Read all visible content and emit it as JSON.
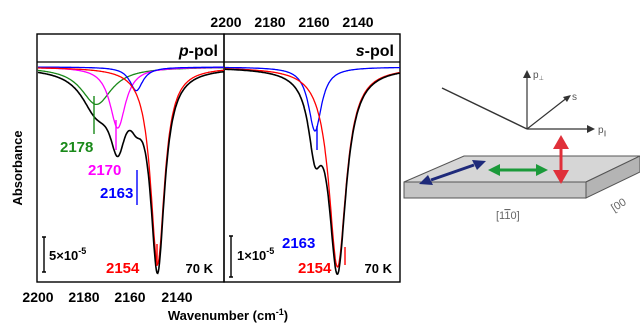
{
  "figure": {
    "y_axis_label": "Absorbance",
    "x_axis_label_text": "Wavenumber (cm",
    "x_axis_label_sup": "-1",
    "x_axis_label_close": ")"
  },
  "colors": {
    "total": "#000000",
    "green": "#1a8a1a",
    "magenta": "#ff00ff",
    "blue": "#0000ff",
    "red": "#ff0000",
    "gray_surface": "#d6d6d6"
  },
  "chart_data": [
    {
      "type": "line",
      "panel": "left",
      "title_italic": "p",
      "title_rest": "-pol",
      "temperature": "70 K",
      "xlim": [
        2200,
        2130
      ],
      "x_ticks": [
        "2200",
        "2180",
        "2160",
        "2140"
      ],
      "scale_bar": {
        "base": "5",
        "times": "×",
        "power": "10",
        "exp": "-5",
        "value": 5e-05
      },
      "series": [
        {
          "name": "fit total",
          "color": "#000000",
          "sum_of": [
            0,
            1,
            2,
            3
          ]
        },
        {
          "name": "2178",
          "color": "#1a8a1a",
          "center": 2178,
          "amplitude": 0.19,
          "width": 7.0
        },
        {
          "name": "2170",
          "color": "#ff00ff",
          "center": 2170,
          "amplitude": 0.31,
          "width": 3.6
        },
        {
          "name": "2163",
          "color": "#0000ff",
          "center": 2163,
          "amplitude": 0.12,
          "width": 3.0
        },
        {
          "name": "2154",
          "color": "#ff0000",
          "center": 2155,
          "amplitude": 1.0,
          "width": 3.2
        }
      ],
      "peak_labels": [
        {
          "text": "2178",
          "color": "#1a8a1a"
        },
        {
          "text": "2170",
          "color": "#ff00ff"
        },
        {
          "text": "2163",
          "color": "#0000ff"
        },
        {
          "text": "2154",
          "color": "#ff0000"
        }
      ]
    },
    {
      "type": "line",
      "panel": "right",
      "title_italic": "s",
      "title_rest": "-pol",
      "temperature": "70 K",
      "xlim": [
        2200,
        2130
      ],
      "x_ticks": [
        "2200",
        "2180",
        "2160",
        "2140"
      ],
      "scale_bar": {
        "base": "1",
        "times": "×",
        "power": "10",
        "exp": "-5",
        "value": 1e-05
      },
      "series": [
        {
          "name": "fit total",
          "color": "#000000",
          "sum_of": [
            0,
            1
          ]
        },
        {
          "name": "2163",
          "color": "#0000ff",
          "center": 2164,
          "amplitude": 0.32,
          "width": 3.2
        },
        {
          "name": "2154",
          "color": "#ff0000",
          "center": 2155,
          "amplitude": 1.0,
          "width": 4.2
        }
      ],
      "peak_labels": [
        {
          "text": "2163",
          "color": "#0000ff"
        },
        {
          "text": "2154",
          "color": "#ff0000"
        }
      ]
    }
  ],
  "schematic": {
    "beam_labels": {
      "p_perp": "p",
      "p_perp_sub": "⊥",
      "s": "s",
      "p_par": "p",
      "p_par_sub": "∥"
    },
    "crystal_labels": {
      "dir_1": "[1",
      "dir_1_bar": "1",
      "dir_1_close": "0]",
      "dir_2": "[00"
    }
  }
}
